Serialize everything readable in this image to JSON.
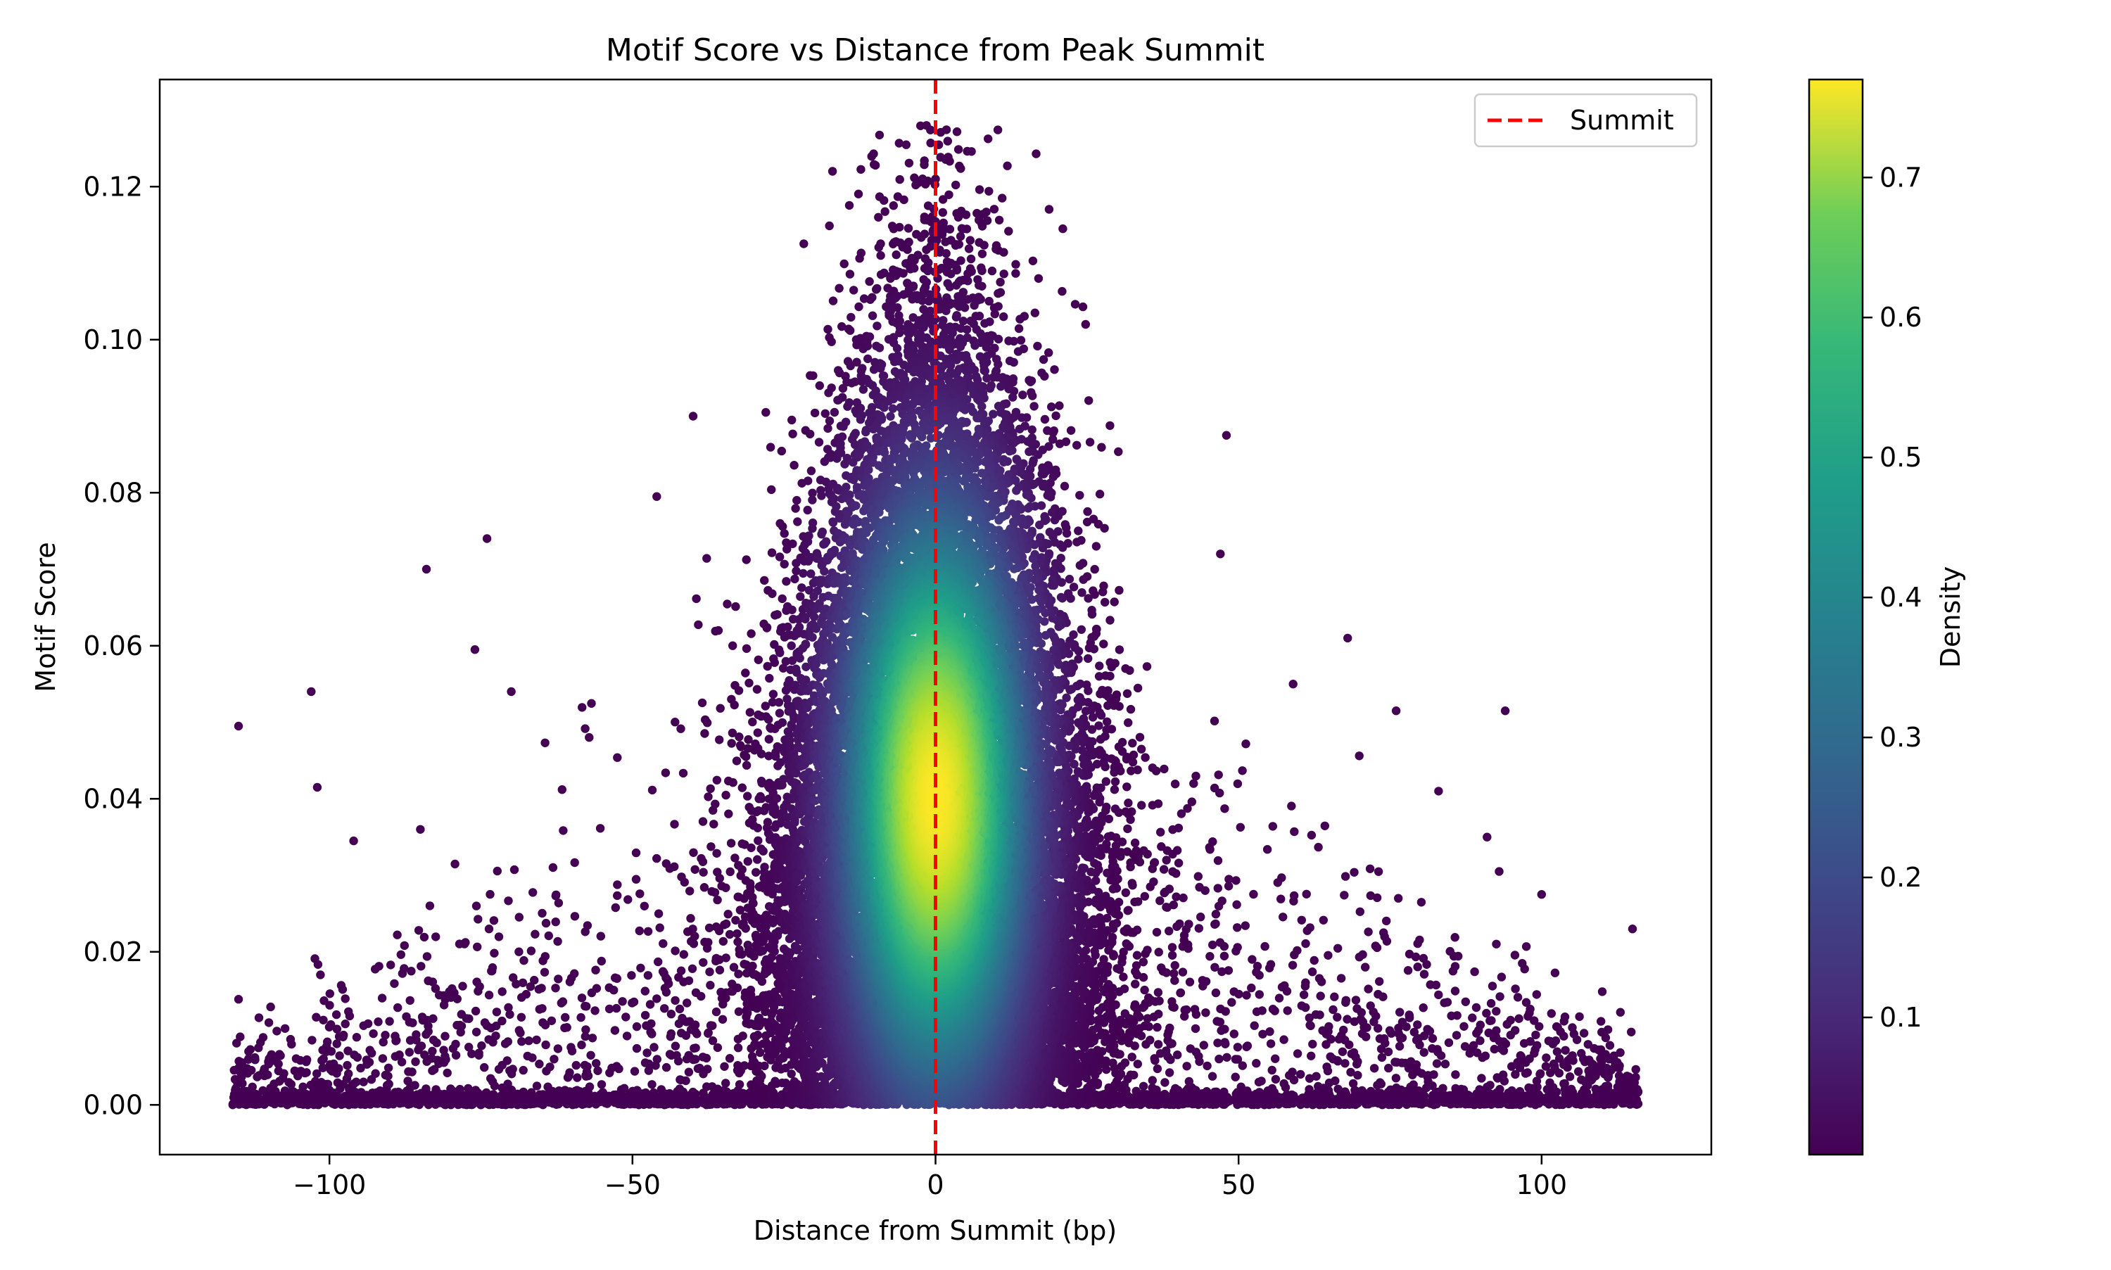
{
  "chart_data": {
    "type": "scatter",
    "title": "Motif Score vs Distance from Peak Summit",
    "xlabel": "Distance from Summit (bp)",
    "ylabel": "Motif Score",
    "xlim": [
      -128,
      128
    ],
    "ylim": [
      -0.0065,
      0.134
    ],
    "xticks": [
      -100,
      -50,
      0,
      50,
      100
    ],
    "xtick_labels": [
      "−100",
      "−50",
      "0",
      "50",
      "100"
    ],
    "yticks": [
      0.0,
      0.02,
      0.04,
      0.06,
      0.08,
      0.1,
      0.12
    ],
    "ytick_labels": [
      "0.00",
      "0.02",
      "0.04",
      "0.06",
      "0.08",
      "0.10",
      "0.12"
    ],
    "grid": false,
    "color_by": "density",
    "colormap": "viridis",
    "colorbar": {
      "label": "Density",
      "range": [
        0.002,
        0.77
      ],
      "ticks": [
        0.1,
        0.2,
        0.3,
        0.4,
        0.5,
        0.6,
        0.7
      ],
      "tick_labels": [
        "0.1",
        "0.2",
        "0.3",
        "0.4",
        "0.5",
        "0.6",
        "0.7"
      ]
    },
    "reference_line": {
      "x": 0,
      "label": "Summit",
      "color": "#ff0000",
      "style": "dashed"
    },
    "legend": {
      "placement": "top-right",
      "entries": [
        "Summit"
      ]
    },
    "distribution": {
      "x_center": 0,
      "x_sd": 12.5,
      "x_range": [
        -116,
        116
      ],
      "score_max": 0.128,
      "density_peak_score": 0.04,
      "density_max": 0.77
    },
    "points": [
      {
        "x": -1.5,
        "y": 0.128
      },
      {
        "x": -17,
        "y": 0.122
      },
      {
        "x": 0,
        "y": 0.121
      },
      {
        "x": 11,
        "y": 0.1185
      },
      {
        "x": 3.5,
        "y": 0.1165
      },
      {
        "x": 21,
        "y": 0.1145
      },
      {
        "x": -7,
        "y": 0.1125
      },
      {
        "x": 17,
        "y": 0.108
      },
      {
        "x": -40,
        "y": 0.09
      },
      {
        "x": -28,
        "y": 0.0905
      },
      {
        "x": 48,
        "y": 0.0875
      },
      {
        "x": -46,
        "y": 0.0795
      },
      {
        "x": -74,
        "y": 0.074
      },
      {
        "x": -84,
        "y": 0.07
      },
      {
        "x": 47,
        "y": 0.072
      },
      {
        "x": 68,
        "y": 0.061
      },
      {
        "x": -76,
        "y": 0.0595
      },
      {
        "x": 76,
        "y": 0.0515
      },
      {
        "x": 94,
        "y": 0.0515
      },
      {
        "x": -103,
        "y": 0.054
      },
      {
        "x": -115,
        "y": 0.0495
      },
      {
        "x": -102,
        "y": 0.0415
      },
      {
        "x": -70,
        "y": 0.054
      },
      {
        "x": 59,
        "y": 0.055
      },
      {
        "x": 83,
        "y": 0.041
      },
      {
        "x": 91,
        "y": 0.035
      },
      {
        "x": -96,
        "y": 0.0345
      },
      {
        "x": -85,
        "y": 0.036
      },
      {
        "x": 93,
        "y": 0.0305
      },
      {
        "x": 100,
        "y": 0.0275
      },
      {
        "x": 115,
        "y": 0.023
      },
      {
        "x": -115,
        "y": 0.0138
      },
      {
        "x": 110,
        "y": 0.0148
      }
    ]
  }
}
